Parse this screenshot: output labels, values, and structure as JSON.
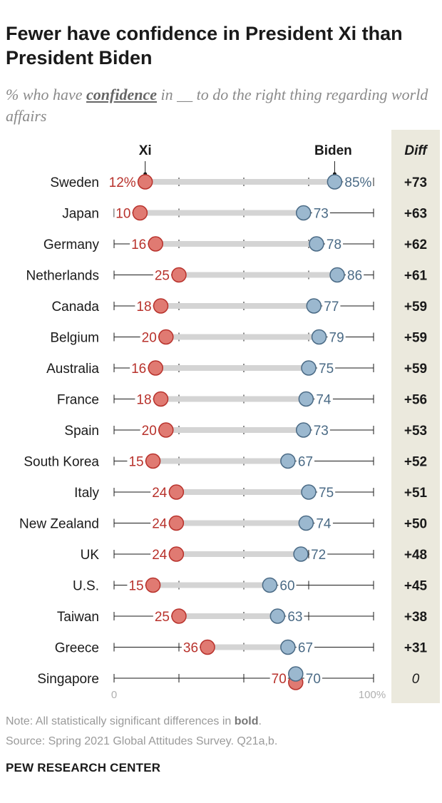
{
  "title": "Fewer have confidence in President Xi than President Biden",
  "subtitle": {
    "prefix": "% who have ",
    "keyword": "confidence",
    "suffix": " in __ to do the right thing regarding world affairs"
  },
  "colors": {
    "xi": "#e07a72",
    "xi_stroke": "#b8322c",
    "xi_text": "#b8322c",
    "biden": "#9bb8cf",
    "biden_stroke": "#4a6a85",
    "biden_text": "#4a6a85",
    "bar": "#d4d4d4",
    "diff_panel": "#ebe9dd"
  },
  "chart_data": {
    "type": "dot-plot",
    "legend": {
      "xi": "Xi",
      "biden": "Biden",
      "diff": "Diff"
    },
    "axis": {
      "min": 0,
      "max": 100,
      "min_label": "0",
      "max_label": "100%"
    },
    "rows": [
      {
        "country": "Sweden",
        "xi": 12,
        "biden": 85,
        "xi_label": "12%",
        "biden_label": "85%",
        "diff": "+73",
        "bold": true
      },
      {
        "country": "Japan",
        "xi": 10,
        "biden": 73,
        "xi_label": "10",
        "biden_label": "73",
        "diff": "+63",
        "bold": true
      },
      {
        "country": "Germany",
        "xi": 16,
        "biden": 78,
        "xi_label": "16",
        "biden_label": "78",
        "diff": "+62",
        "bold": true
      },
      {
        "country": "Netherlands",
        "xi": 25,
        "biden": 86,
        "xi_label": "25",
        "biden_label": "86",
        "diff": "+61",
        "bold": true
      },
      {
        "country": "Canada",
        "xi": 18,
        "biden": 77,
        "xi_label": "18",
        "biden_label": "77",
        "diff": "+59",
        "bold": true
      },
      {
        "country": "Belgium",
        "xi": 20,
        "biden": 79,
        "xi_label": "20",
        "biden_label": "79",
        "diff": "+59",
        "bold": true
      },
      {
        "country": "Australia",
        "xi": 16,
        "biden": 75,
        "xi_label": "16",
        "biden_label": "75",
        "diff": "+59",
        "bold": true
      },
      {
        "country": "France",
        "xi": 18,
        "biden": 74,
        "xi_label": "18",
        "biden_label": "74",
        "diff": "+56",
        "bold": true
      },
      {
        "country": "Spain",
        "xi": 20,
        "biden": 73,
        "xi_label": "20",
        "biden_label": "73",
        "diff": "+53",
        "bold": true
      },
      {
        "country": "South Korea",
        "xi": 15,
        "biden": 67,
        "xi_label": "15",
        "biden_label": "67",
        "diff": "+52",
        "bold": true
      },
      {
        "country": "Italy",
        "xi": 24,
        "biden": 75,
        "xi_label": "24",
        "biden_label": "75",
        "diff": "+51",
        "bold": true
      },
      {
        "country": "New Zealand",
        "xi": 24,
        "biden": 74,
        "xi_label": "24",
        "biden_label": "74",
        "diff": "+50",
        "bold": true
      },
      {
        "country": "UK",
        "xi": 24,
        "biden": 72,
        "xi_label": "24",
        "biden_label": "72",
        "diff": "+48",
        "bold": true
      },
      {
        "country": "U.S.",
        "xi": 15,
        "biden": 60,
        "xi_label": "15",
        "biden_label": "60",
        "diff": "+45",
        "bold": true
      },
      {
        "country": "Taiwan",
        "xi": 25,
        "biden": 63,
        "xi_label": "25",
        "biden_label": "63",
        "diff": "+38",
        "bold": true
      },
      {
        "country": "Greece",
        "xi": 36,
        "biden": 67,
        "xi_label": "36",
        "biden_label": "67",
        "diff": "+31",
        "bold": true
      },
      {
        "country": "Singapore",
        "xi": 70,
        "biden": 70,
        "xi_label": "70",
        "biden_label": "70",
        "diff": "0",
        "bold": false
      }
    ]
  },
  "footer": {
    "note_prefix": "Note: All statistically significant differences in ",
    "note_bold": "bold",
    "note_suffix": ".",
    "source": "Source: Spring 2021 Global Attitudes Survey. Q21a,b.",
    "org": "PEW RESEARCH CENTER"
  }
}
